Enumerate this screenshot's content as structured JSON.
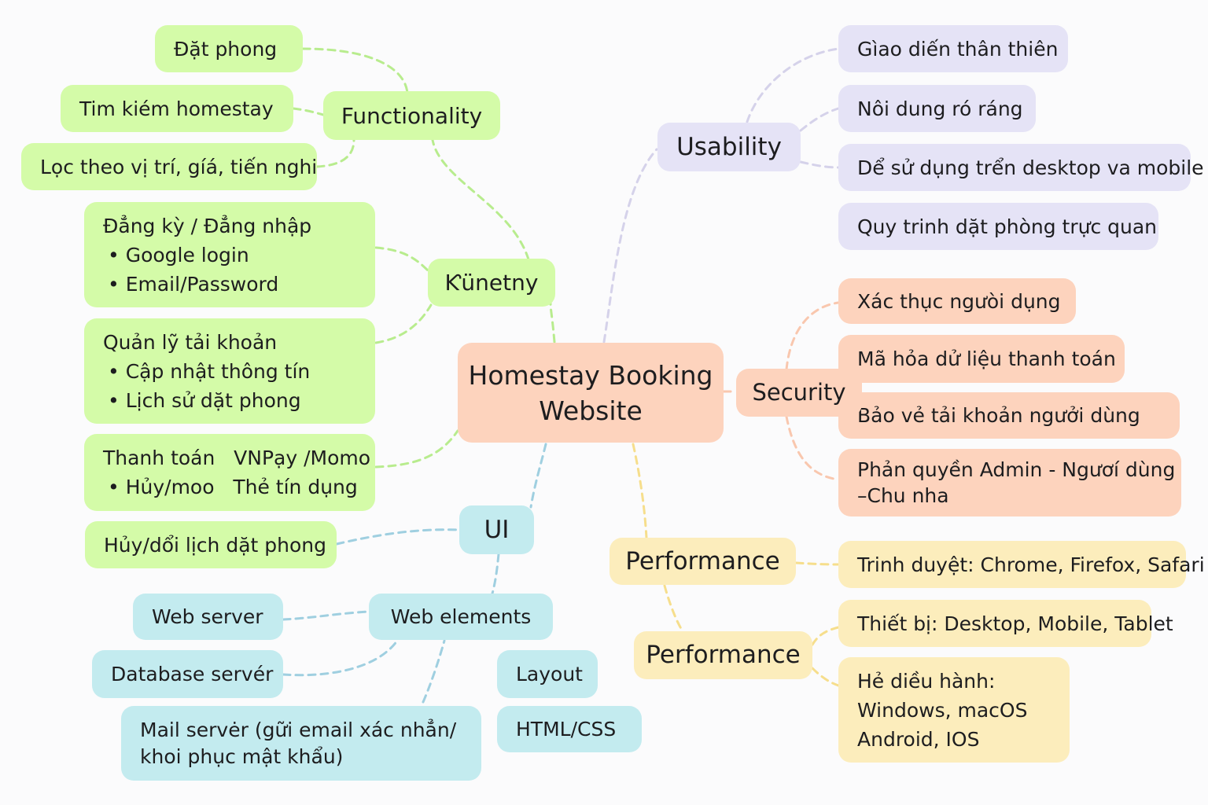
{
  "center": {
    "line1": "Homestay Booking",
    "line2": "Website"
  },
  "colors": {
    "green": "#d4fba8",
    "lavender": "#e5e3f6",
    "peach": "#fdd3bd",
    "yellow": "#fcedbc",
    "cyan": "#c3ebef"
  },
  "functionality": {
    "label": "Functionality",
    "items": [
      "Đặt phong",
      "Tim kiém homestay",
      "Lọc theo vị trí, gíá, tiến nghi"
    ]
  },
  "hunetny": {
    "label": "Ƙünetny",
    "auth": {
      "title": "Đẳng kỳ / Đẳng nhập",
      "bullets": [
        "Google login",
        "Email/Password"
      ]
    },
    "account": {
      "title": "Quản lỹ tải khoản",
      "bullets": [
        "Cập nhật thông tín",
        "Lịch sử dặt phong"
      ]
    },
    "payment": {
      "line1": "Thanh toán   VNPạy /Momo",
      "line2": "Hủy/moo   Thẻ tín dụng"
    }
  },
  "ui": {
    "label": "UI",
    "items": [
      "Hủy/dổi lịch dặt phong"
    ],
    "web_elements": {
      "label": "Web elements",
      "items": [
        "Web server",
        "Database servér",
        "Mail servėr (gữi email xác nhẳn/",
        "khoi phục mật khẩu)"
      ]
    },
    "layout_items": [
      "Layout",
      "HTML/CSS"
    ]
  },
  "usability": {
    "label": "Usability",
    "items": [
      "Gìao diến thân thiên",
      "Nôi dung ró ráng",
      "Dể sử dụng trển desktop va mobile",
      "Quy trinh dặt phòng trực quan"
    ]
  },
  "security": {
    "label": "Security",
    "items": [
      "Xác thục ngưòi dụng",
      "Mã hỏa dử liệu thanh toán",
      "Bảo vẻ tải khoản ngưởi dùng",
      "Phản quyền Admin - Ngươí dùng",
      "–Chu nha"
    ]
  },
  "performance_1": {
    "label": "Performance",
    "items": [
      "Trinh duyệt: Chrome, Firefox, Safari"
    ]
  },
  "performance_2": {
    "label": "Performance",
    "items": [
      "Thiết bị: Desktop, Mobile, Tablet",
      "Hẻ diều hành:",
      "Windows, macOS",
      "Android, IOS"
    ]
  }
}
